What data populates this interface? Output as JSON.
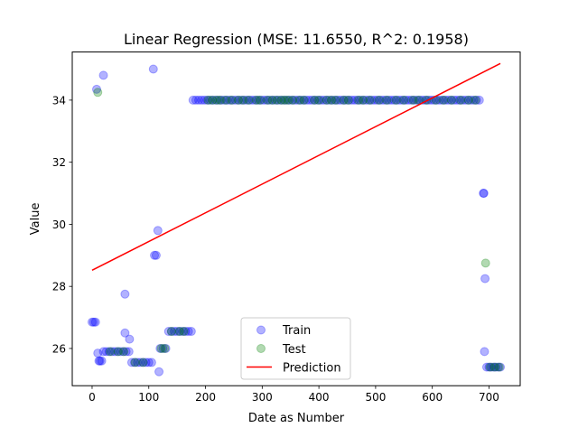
{
  "chart_data": {
    "type": "scatter",
    "title": "Linear Regression (MSE: 11.6550, R^2: 0.1958)",
    "xlabel": "Date as Number",
    "ylabel": "Value",
    "xlim": [
      -35,
      755
    ],
    "ylim": [
      24.8,
      35.55
    ],
    "xticks": [
      0,
      100,
      200,
      300,
      400,
      500,
      600,
      700
    ],
    "yticks": [
      26,
      28,
      30,
      32,
      34
    ],
    "grid": false,
    "legend_position": "bottom-center",
    "series": [
      {
        "name": "Train",
        "kind": "scatter",
        "color": "#0000ff",
        "alpha": 0.3,
        "points": [
          [
            0,
            26.85
          ],
          [
            3,
            26.85
          ],
          [
            6,
            26.85
          ],
          [
            8,
            34.35
          ],
          [
            10,
            25.85
          ],
          [
            12,
            25.6
          ],
          [
            14,
            25.6
          ],
          [
            17,
            25.6
          ],
          [
            20,
            34.8
          ],
          [
            20,
            25.9
          ],
          [
            25,
            25.9
          ],
          [
            30,
            25.9
          ],
          [
            35,
            25.9
          ],
          [
            40,
            25.9
          ],
          [
            45,
            25.9
          ],
          [
            50,
            25.9
          ],
          [
            55,
            25.9
          ],
          [
            58,
            27.75
          ],
          [
            58,
            26.5
          ],
          [
            60,
            25.9
          ],
          [
            65,
            25.9
          ],
          [
            66,
            26.3
          ],
          [
            70,
            25.55
          ],
          [
            75,
            25.55
          ],
          [
            80,
            25.55
          ],
          [
            85,
            25.55
          ],
          [
            90,
            25.55
          ],
          [
            95,
            25.55
          ],
          [
            100,
            25.55
          ],
          [
            105,
            25.55
          ],
          [
            108,
            35.0
          ],
          [
            110,
            29.0
          ],
          [
            113,
            29.0
          ],
          [
            116,
            29.8
          ],
          [
            118,
            25.25
          ],
          [
            120,
            26.0
          ],
          [
            125,
            26.0
          ],
          [
            130,
            26.0
          ],
          [
            135,
            26.55
          ],
          [
            140,
            26.55
          ],
          [
            145,
            26.55
          ],
          [
            150,
            26.55
          ],
          [
            155,
            26.55
          ],
          [
            160,
            26.55
          ],
          [
            165,
            26.55
          ],
          [
            170,
            26.55
          ],
          [
            175,
            26.55
          ],
          [
            178,
            34.0
          ],
          [
            183,
            34.0
          ],
          [
            188,
            34.0
          ],
          [
            193,
            34.0
          ],
          [
            198,
            34.0
          ],
          [
            203,
            34.0
          ],
          [
            208,
            34.0
          ],
          [
            213,
            34.0
          ],
          [
            218,
            34.0
          ],
          [
            223,
            34.0
          ],
          [
            228,
            34.0
          ],
          [
            233,
            34.0
          ],
          [
            238,
            34.0
          ],
          [
            243,
            34.0
          ],
          [
            248,
            34.0
          ],
          [
            253,
            34.0
          ],
          [
            258,
            34.0
          ],
          [
            263,
            34.0
          ],
          [
            268,
            34.0
          ],
          [
            273,
            34.0
          ],
          [
            278,
            34.0
          ],
          [
            283,
            34.0
          ],
          [
            288,
            34.0
          ],
          [
            293,
            34.0
          ],
          [
            298,
            34.0
          ],
          [
            303,
            34.0
          ],
          [
            308,
            34.0
          ],
          [
            313,
            34.0
          ],
          [
            318,
            34.0
          ],
          [
            323,
            34.0
          ],
          [
            328,
            34.0
          ],
          [
            333,
            34.0
          ],
          [
            338,
            34.0
          ],
          [
            343,
            34.0
          ],
          [
            348,
            34.0
          ],
          [
            353,
            34.0
          ],
          [
            358,
            34.0
          ],
          [
            363,
            34.0
          ],
          [
            368,
            34.0
          ],
          [
            373,
            34.0
          ],
          [
            378,
            34.0
          ],
          [
            383,
            34.0
          ],
          [
            388,
            34.0
          ],
          [
            393,
            34.0
          ],
          [
            398,
            34.0
          ],
          [
            403,
            34.0
          ],
          [
            408,
            34.0
          ],
          [
            413,
            34.0
          ],
          [
            418,
            34.0
          ],
          [
            423,
            34.0
          ],
          [
            428,
            34.0
          ],
          [
            433,
            34.0
          ],
          [
            438,
            34.0
          ],
          [
            443,
            34.0
          ],
          [
            448,
            34.0
          ],
          [
            453,
            34.0
          ],
          [
            458,
            34.0
          ],
          [
            463,
            34.0
          ],
          [
            468,
            34.0
          ],
          [
            473,
            34.0
          ],
          [
            478,
            34.0
          ],
          [
            483,
            34.0
          ],
          [
            488,
            34.0
          ],
          [
            493,
            34.0
          ],
          [
            498,
            34.0
          ],
          [
            503,
            34.0
          ],
          [
            508,
            34.0
          ],
          [
            513,
            34.0
          ],
          [
            518,
            34.0
          ],
          [
            523,
            34.0
          ],
          [
            528,
            34.0
          ],
          [
            533,
            34.0
          ],
          [
            538,
            34.0
          ],
          [
            543,
            34.0
          ],
          [
            548,
            34.0
          ],
          [
            553,
            34.0
          ],
          [
            558,
            34.0
          ],
          [
            563,
            34.0
          ],
          [
            568,
            34.0
          ],
          [
            573,
            34.0
          ],
          [
            578,
            34.0
          ],
          [
            583,
            34.0
          ],
          [
            588,
            34.0
          ],
          [
            593,
            34.0
          ],
          [
            598,
            34.0
          ],
          [
            603,
            34.0
          ],
          [
            608,
            34.0
          ],
          [
            613,
            34.0
          ],
          [
            618,
            34.0
          ],
          [
            623,
            34.0
          ],
          [
            628,
            34.0
          ],
          [
            633,
            34.0
          ],
          [
            638,
            34.0
          ],
          [
            643,
            34.0
          ],
          [
            648,
            34.0
          ],
          [
            653,
            34.0
          ],
          [
            658,
            34.0
          ],
          [
            663,
            34.0
          ],
          [
            668,
            34.0
          ],
          [
            673,
            34.0
          ],
          [
            678,
            34.0
          ],
          [
            683,
            34.0
          ],
          [
            690,
            31.0
          ],
          [
            691,
            31.0
          ],
          [
            692,
            25.9
          ],
          [
            693,
            28.25
          ],
          [
            696,
            25.4
          ],
          [
            700,
            25.4
          ],
          [
            704,
            25.4
          ],
          [
            708,
            25.4
          ],
          [
            712,
            25.4
          ],
          [
            716,
            25.4
          ],
          [
            720,
            25.4
          ]
        ]
      },
      {
        "name": "Test",
        "kind": "scatter",
        "color": "#008000",
        "alpha": 0.3,
        "points": [
          [
            10,
            34.25
          ],
          [
            32,
            25.9
          ],
          [
            46,
            25.9
          ],
          [
            56,
            25.9
          ],
          [
            76,
            25.55
          ],
          [
            90,
            25.55
          ],
          [
            122,
            26.0
          ],
          [
            128,
            26.0
          ],
          [
            140,
            26.55
          ],
          [
            154,
            26.55
          ],
          [
            162,
            26.55
          ],
          [
            205,
            34.0
          ],
          [
            212,
            34.0
          ],
          [
            220,
            34.0
          ],
          [
            226,
            34.0
          ],
          [
            236,
            34.0
          ],
          [
            246,
            34.0
          ],
          [
            258,
            34.0
          ],
          [
            266,
            34.0
          ],
          [
            276,
            34.0
          ],
          [
            290,
            34.0
          ],
          [
            296,
            34.0
          ],
          [
            310,
            34.0
          ],
          [
            318,
            34.0
          ],
          [
            326,
            34.0
          ],
          [
            334,
            34.0
          ],
          [
            340,
            34.0
          ],
          [
            346,
            34.0
          ],
          [
            354,
            34.0
          ],
          [
            366,
            34.0
          ],
          [
            374,
            34.0
          ],
          [
            392,
            34.0
          ],
          [
            400,
            34.0
          ],
          [
            414,
            34.0
          ],
          [
            422,
            34.0
          ],
          [
            430,
            34.0
          ],
          [
            444,
            34.0
          ],
          [
            452,
            34.0
          ],
          [
            470,
            34.0
          ],
          [
            478,
            34.0
          ],
          [
            490,
            34.0
          ],
          [
            506,
            34.0
          ],
          [
            520,
            34.0
          ],
          [
            536,
            34.0
          ],
          [
            550,
            34.0
          ],
          [
            566,
            34.0
          ],
          [
            576,
            34.0
          ],
          [
            590,
            34.0
          ],
          [
            606,
            34.0
          ],
          [
            620,
            34.0
          ],
          [
            634,
            34.0
          ],
          [
            650,
            34.0
          ],
          [
            664,
            34.0
          ],
          [
            676,
            34.0
          ],
          [
            694,
            28.75
          ],
          [
            702,
            25.4
          ],
          [
            710,
            25.4
          ],
          [
            718,
            25.4
          ]
        ]
      },
      {
        "name": "Prediction",
        "kind": "line",
        "color": "#ff0000",
        "points": [
          [
            0,
            28.52
          ],
          [
            720,
            35.18
          ]
        ]
      }
    ]
  }
}
